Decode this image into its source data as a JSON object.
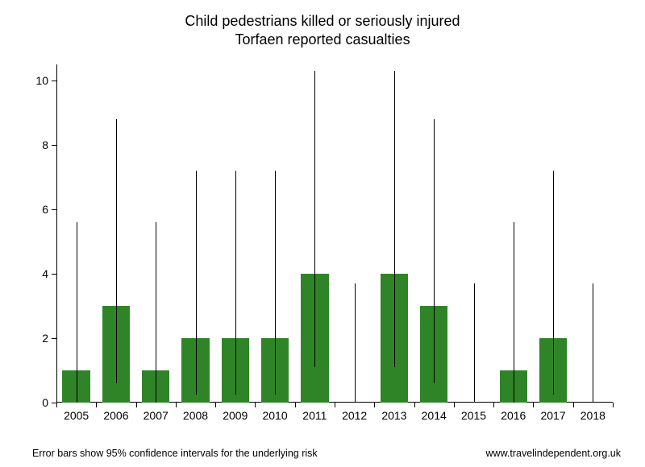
{
  "chart": {
    "type": "bar-with-errorbars",
    "title_line1": "Child pedestrians killed or seriously injured",
    "title_line2": "Torfaen reported casualties",
    "title_fontsize": 18,
    "title_color": "#000000",
    "background_color": "#ffffff",
    "bar_color": "#2f8427",
    "error_bar_color": "#000000",
    "axis_color": "#000000",
    "label_fontsize": 14,
    "footer_fontsize": 12.5,
    "bar_width_ratio": 0.7,
    "ylim": [
      0,
      10.5
    ],
    "ytick_step": 2,
    "yticks": [
      0,
      2,
      4,
      6,
      8,
      10
    ],
    "categories": [
      "2005",
      "2006",
      "2007",
      "2008",
      "2009",
      "2010",
      "2011",
      "2012",
      "2013",
      "2014",
      "2015",
      "2016",
      "2017",
      "2018"
    ],
    "values": [
      1,
      3,
      1,
      2,
      2,
      2,
      4,
      0,
      4,
      3,
      0,
      1,
      2,
      0
    ],
    "error_low": [
      0,
      0.6,
      0,
      0.25,
      0.25,
      0.25,
      1.1,
      0,
      1.1,
      0.6,
      0,
      0,
      0.25,
      0
    ],
    "error_high": [
      5.6,
      8.8,
      5.6,
      7.2,
      7.2,
      7.2,
      10.3,
      3.7,
      10.3,
      8.8,
      3.7,
      5.6,
      7.2,
      3.7
    ],
    "footer_left": "Error bars show 95% confidence intervals for the underlying risk",
    "footer_right": "www.travelindependent.org.uk"
  }
}
